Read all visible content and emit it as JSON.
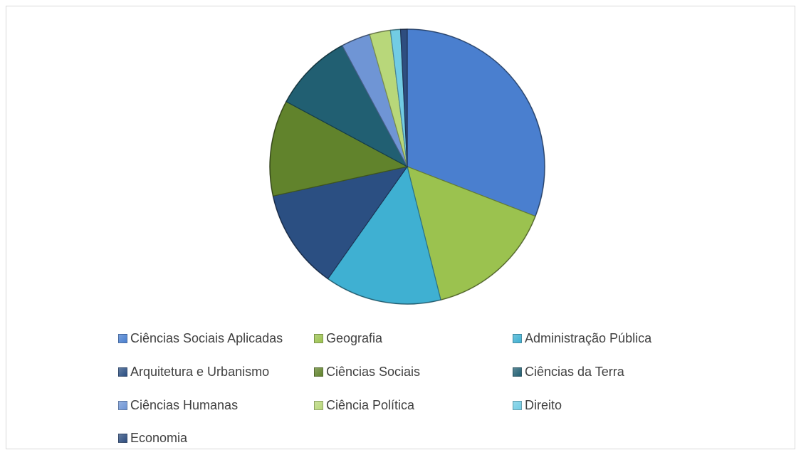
{
  "chart_data": {
    "type": "pie",
    "title": "",
    "series": [
      {
        "values": [
          31.5,
          15.5,
          14.0,
          12.0,
          11.5,
          9.5,
          3.5,
          2.5,
          1.2,
          0.8
        ]
      }
    ],
    "categories": [
      "Ciências Sociais Aplicadas",
      "Geografia",
      "Administração Pública",
      "Arquitetura e Urbanismo",
      "Ciências Sociais",
      "Ciências da Terra",
      "Ciências Humanas",
      "Ciência Política",
      "Direito",
      "Economia"
    ],
    "colors": [
      "#4a7fcf",
      "#9bc24f",
      "#3fb0d2",
      "#2b4f82",
      "#61832c",
      "#215f72",
      "#6f95d5",
      "#b8d77a",
      "#72cce4",
      "#2e4d7f"
    ],
    "legend": "bottom",
    "start_angle": "top, clockwise"
  }
}
